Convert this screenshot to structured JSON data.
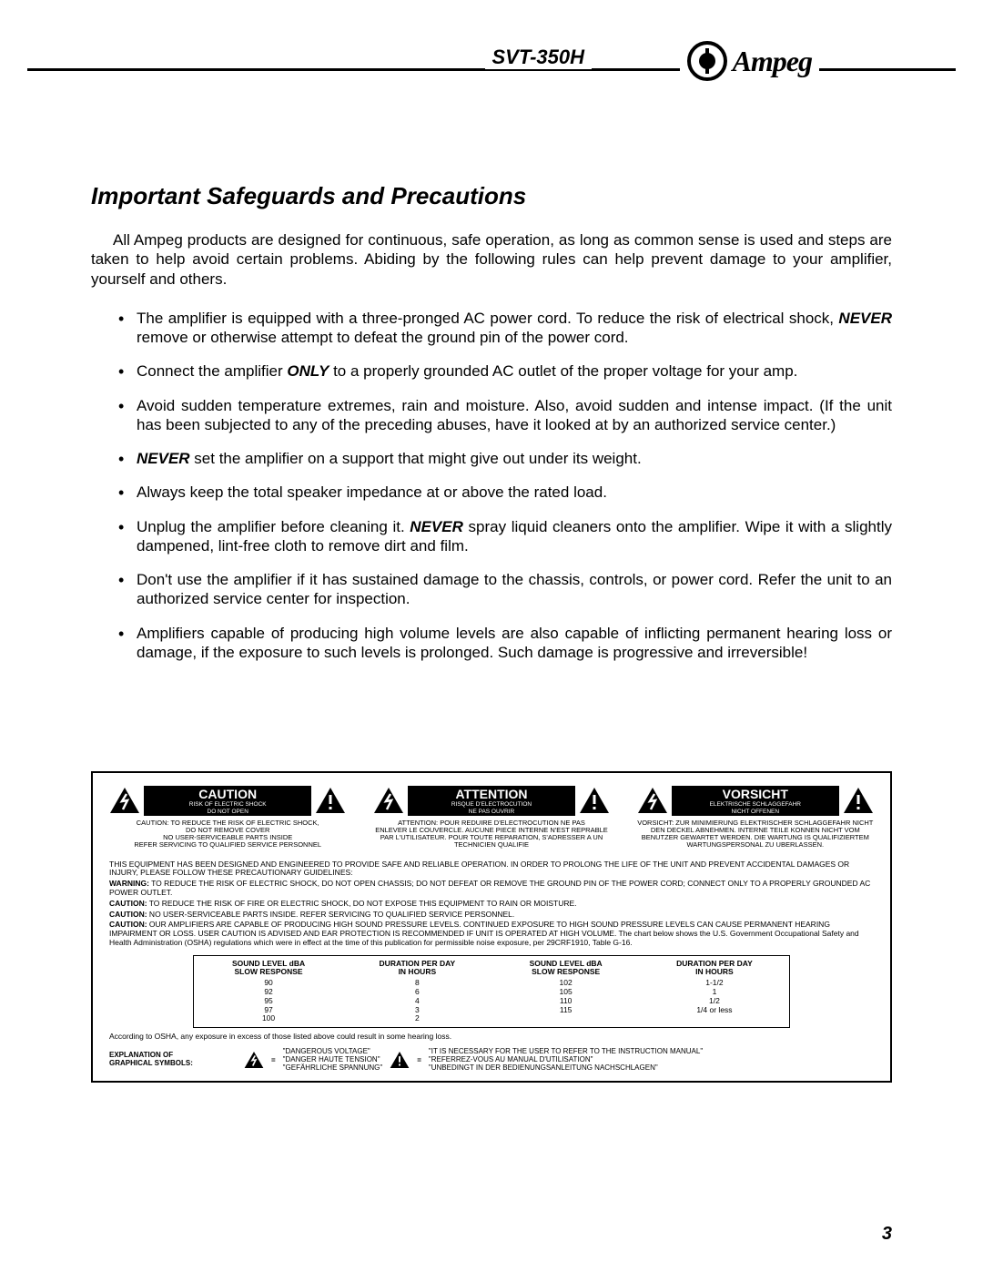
{
  "header": {
    "model": "SVT-350H",
    "brand": "Ampeg"
  },
  "title": "Important Safeguards and Precautions",
  "intro": "All Ampeg products are designed for continuous, safe operation, as long as common sense is used and steps are taken to help avoid certain problems. Abiding by the following rules can help prevent damage to your amplifier, yourself and others.",
  "bullets": {
    "b1a": "The amplifier is equipped with a three-pronged  AC power cord. To reduce the risk of electrical shock, ",
    "b1_never": "NEVER",
    "b1b": " remove or otherwise attempt to defeat the ground pin of the power cord.",
    "b2a": "Connect the amplifier ",
    "b2_only": "ONLY",
    "b2b": " to a properly grounded AC outlet of the proper voltage for your  amp.",
    "b3": "Avoid sudden temperature extremes, rain and moisture. Also, avoid sudden and intense impact. (If the unit has been subjected to any of the preceding abuses, have it looked at by an authorized service center.)",
    "b4_never": "NEVER",
    "b4b": " set the amplifier on a support that might give out under its weight.",
    "b5": "Always keep the total speaker impedance at or above the rated load.",
    "b6a": "Unplug the amplifier before cleaning it. ",
    "b6_never": "NEVER",
    "b6b": " spray liquid cleaners onto the amplifier. Wipe it with a slightly dampened, lint-free cloth to remove dirt and film.",
    "b7": "Don't use the amplifier if it has sustained damage to the chassis, controls, or power cord. Refer the unit to an authorized service center for inspection.",
    "b8": "Amplifiers capable of producing high volume levels are also capable of inflicting permanent hearing loss or damage, if the exposure to such levels is prolonged. Such damage is progressive and irreversible!"
  },
  "caution_blocks": [
    {
      "label": "CAUTION",
      "sub": "RISK OF ELECTRIC SHOCK\nDO NOT OPEN",
      "text": "CAUTION: TO REDUCE THE RISK OF ELECTRIC SHOCK,\nDO NOT REMOVE COVER\nNO USER-SERVICEABLE PARTS INSIDE\nREFER SERVICING TO QUALIFIED SERVICE PERSONNEL"
    },
    {
      "label": "ATTENTION",
      "sub": "RISQUE D'ELECTROCUTION\nNE PAS OUVRIR",
      "text": "ATTENTION: POUR REDUIRE D'ELECTROCUTION NE PAS\nENLEVER LE COUVERCLE. AUCUNE PIECE INTERNE N'EST REPRABLE\nPAR L'UTILISATEUR. POUR TOUTE REPARATION, S'ADRESSER A UN\nTECHNICIEN QUALIFIE"
    },
    {
      "label": "VORSICHT",
      "sub": "ELEKTRISCHE SCHLAGGEFAHR\nNICHT OFFENEN",
      "text": "VORSICHT: ZUR MINIMIERUNG ELEKTRISCHER SCHLAGGEFAHR NICHT\nDEN DECKEL ABNEHMEN. INTERNE TEILE KONNEN NICHT VOM\nBENUTZER GEWARTET WERDEN. DIE WARTUNG IS QUALIFIZIERTEM\nWARTUNGSPERSONAL ZU UBERLASSEN."
    }
  ],
  "warn_paragraphs": {
    "p1": "THIS EQUIPMENT HAS BEEN DESIGNED AND ENGINEERED TO PROVIDE SAFE AND RELIABLE OPERATION. IN ORDER TO PROLONG THE LIFE OF THE UNIT AND PREVENT ACCIDENTAL DAMAGES OR INJURY, PLEASE FOLLOW THESE PRECAUTIONARY GUIDELINES:",
    "p2_label": "WARNING:",
    "p2": " TO REDUCE THE RISK OF ELECTRIC SHOCK, DO NOT OPEN CHASSIS; DO NOT DEFEAT OR REMOVE THE GROUND PIN OF THE POWER CORD; CONNECT ONLY TO A PROPERLY GROUNDED AC POWER OUTLET.",
    "p3_label": "CAUTION:",
    "p3": " TO REDUCE THE RISK OF FIRE OR ELECTRIC SHOCK, DO NOT EXPOSE THIS EQUIPMENT TO RAIN OR MOISTURE.",
    "p4_label": "CAUTION:",
    "p4": " NO USER-SERVICEABLE PARTS INSIDE. REFER SERVICING TO QUALIFIED SERVICE PERSONNEL.",
    "p5_label": "CAUTION:",
    "p5": " OUR AMPLIFIERS ARE CAPABLE OF PRODUCING HIGH SOUND PRESSURE LEVELS. CONTINUED EXPOSURE TO HIGH SOUND PRESSURE LEVELS CAN CAUSE PERMANENT HEARING IMPAIRMENT OR LOSS. USER CAUTION IS ADVISED AND EAR PROTECTION IS RECOMMENDED IF UNIT IS OPERATED AT HIGH VOLUME.  The chart below shows the U.S. Government Occupational Safety and Health Administration (OSHA) regulations which were in effect at the time of this publication for permissible noise exposure, per 29CRF1910, Table G-16."
  },
  "sound_table": {
    "head1": "SOUND LEVEL dBA",
    "head1b": "SLOW RESPONSE",
    "head2": "DURATION PER DAY",
    "head2b": "IN HOURS",
    "col1": [
      "90",
      "92",
      "95",
      "97",
      "100"
    ],
    "col2": [
      "8",
      "6",
      "4",
      "3",
      "2"
    ],
    "col3": [
      "102",
      "105",
      "110",
      "115"
    ],
    "col4": [
      "1-1/2",
      "1",
      "1/2",
      "1/4 or less"
    ]
  },
  "osha_note": "According to OSHA, any exposure in excess of those listed above could result in some hearing loss.",
  "symbols": {
    "label": "EXPLANATION OF\nGRAPHICAL SYMBOLS:",
    "bolt": "\"DANGEROUS VOLTAGE\"\n\"DANGER HAUTE TENSION\"\n\"GEFÄHRLICHE SPANNUNG\"",
    "excl": "\"IT IS NECESSARY FOR THE USER TO REFER TO THE INSTRUCTION MANUAL\"\n\"REFERREZ-VOUS AU MANUAL D'UTILISATION\"\n\"UNBEDINGT IN DER BEDIENUNGSANLEITUNG NACHSCHLAGEN\""
  },
  "page_number": "3",
  "colors": {
    "text": "#000000",
    "bg": "#ffffff"
  }
}
